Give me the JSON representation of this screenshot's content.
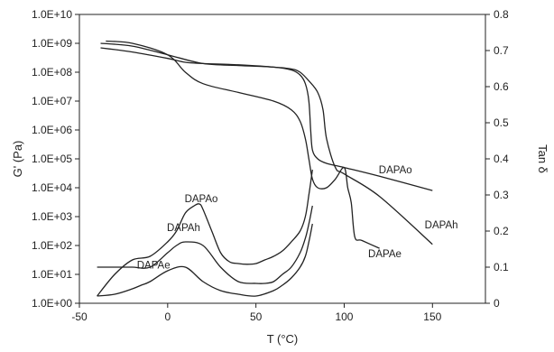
{
  "chart_data": {
    "type": "line",
    "xlabel": "T (°C)",
    "ylabel_left": "G' (Pa)",
    "ylabel_right": "Tan δ",
    "x_ticks": [
      "-50",
      "0",
      "50",
      "100",
      "150"
    ],
    "x_tick_values": [
      -50,
      0,
      50,
      100,
      150
    ],
    "xlim": [
      -50,
      180
    ],
    "y_left_scale": "log",
    "y_left_ticks": [
      "1.0E+00",
      "1.0E+01",
      "1.0E+02",
      "1.0E+03",
      "1.0E+04",
      "1.0E+05",
      "1.0E+06",
      "1.0E+07",
      "1.0E+08",
      "1.0E+09",
      "1.0E+10"
    ],
    "y_left_exponents": [
      0,
      1,
      2,
      3,
      4,
      5,
      6,
      7,
      8,
      9,
      10
    ],
    "y_left_lim_exp": [
      0,
      10
    ],
    "y_right_ticks": [
      "0",
      "0.1",
      "0.2",
      "0.3",
      "0.4",
      "0.5",
      "0.6",
      "0.7",
      "0.8"
    ],
    "y_right_tick_values": [
      0,
      0.1,
      0.2,
      0.3,
      0.4,
      0.5,
      0.6,
      0.7,
      0.8
    ],
    "y_right_lim": [
      0,
      0.8
    ],
    "grid": false,
    "modulus_series": [
      {
        "name": "DAPAo",
        "axis": "left",
        "x": [
          -38,
          -20,
          0,
          10,
          20,
          40,
          60,
          70,
          75,
          78,
          80,
          81,
          82,
          85,
          90,
          100,
          120,
          150
        ],
        "y": [
          700000000.0,
          500000000.0,
          300000000.0,
          220000000.0,
          200000000.0,
          180000000.0,
          150000000.0,
          120000000.0,
          80000000.0,
          40000000.0,
          10000000.0,
          1000000.0,
          200000.0,
          100000.0,
          70000.0,
          50000.0,
          25000.0,
          8000.0
        ]
      },
      {
        "name": "DAPAh",
        "axis": "left",
        "x": [
          -38,
          -20,
          0,
          20,
          40,
          60,
          70,
          75,
          80,
          85,
          88,
          90,
          95,
          100,
          120,
          150
        ],
        "y": [
          1000000000.0,
          800000000.0,
          400000000.0,
          200000000.0,
          170000000.0,
          150000000.0,
          130000000.0,
          100000000.0,
          50000000.0,
          20000000.0,
          5000000.0,
          500000.0,
          50000.0,
          30000.0,
          5000.0,
          110.0
        ]
      },
      {
        "name": "DAPAe",
        "axis": "left",
        "x": [
          -35,
          -20,
          0,
          10,
          20,
          40,
          60,
          70,
          75,
          78,
          80,
          82,
          85,
          90,
          95,
          100,
          102,
          104,
          106,
          110,
          120
        ],
        "y": [
          1200000000.0,
          1000000000.0,
          400000000.0,
          100000000.0,
          40000000.0,
          20000000.0,
          10000000.0,
          5000000.0,
          2000000.0,
          500000.0,
          100000.0,
          20000.0,
          10000.0,
          10000.0,
          20000.0,
          50000.0,
          10000.0,
          3000.0,
          200.0,
          150.0,
          80.0
        ]
      }
    ],
    "tan_delta_series": [
      {
        "name": "DAPAo",
        "axis": "right",
        "x": [
          -40,
          -30,
          -20,
          -10,
          0,
          5,
          10,
          15,
          18,
          20,
          25,
          30,
          35,
          40,
          45,
          50,
          55,
          60,
          65,
          70,
          75,
          78,
          80,
          82
        ],
        "y": [
          0.02,
          0.08,
          0.12,
          0.13,
          0.17,
          0.2,
          0.25,
          0.27,
          0.275,
          0.26,
          0.2,
          0.14,
          0.115,
          0.11,
          0.108,
          0.11,
          0.12,
          0.13,
          0.145,
          0.17,
          0.2,
          0.24,
          0.3,
          0.37
        ]
      },
      {
        "name": "DAPAh",
        "axis": "right",
        "x": [
          -40,
          -30,
          -20,
          -10,
          0,
          5,
          10,
          20,
          30,
          40,
          50,
          55,
          60,
          65,
          70,
          75,
          78,
          80,
          82
        ],
        "y": [
          0.1,
          0.1,
          0.1,
          0.1,
          0.14,
          0.16,
          0.17,
          0.16,
          0.1,
          0.06,
          0.055,
          0.055,
          0.06,
          0.08,
          0.1,
          0.14,
          0.18,
          0.22,
          0.27
        ]
      },
      {
        "name": "DAPAe",
        "axis": "right",
        "x": [
          -40,
          -30,
          -20,
          -15,
          -10,
          0,
          10,
          20,
          30,
          40,
          50,
          60,
          65,
          70,
          75,
          78,
          80,
          82
        ],
        "y": [
          0.02,
          0.025,
          0.04,
          0.05,
          0.06,
          0.09,
          0.1,
          0.06,
          0.035,
          0.025,
          0.02,
          0.035,
          0.05,
          0.07,
          0.1,
          0.13,
          0.17,
          0.22
        ]
      }
    ],
    "annotations": [
      {
        "text": "DAPAo",
        "x": 129,
        "y_exp": 4.5
      },
      {
        "text": "DAPAh",
        "x": 155,
        "y_exp": 2.6
      },
      {
        "text": "DAPAe",
        "x": 123,
        "y_exp": 1.6
      },
      {
        "text": "DAPAo",
        "x": 19,
        "y_exp": 3.5
      },
      {
        "text": "DAPAh",
        "x": 9,
        "y_exp": 2.5
      },
      {
        "text": "DAPAe",
        "x": -8,
        "y_exp": 1.2
      }
    ]
  }
}
